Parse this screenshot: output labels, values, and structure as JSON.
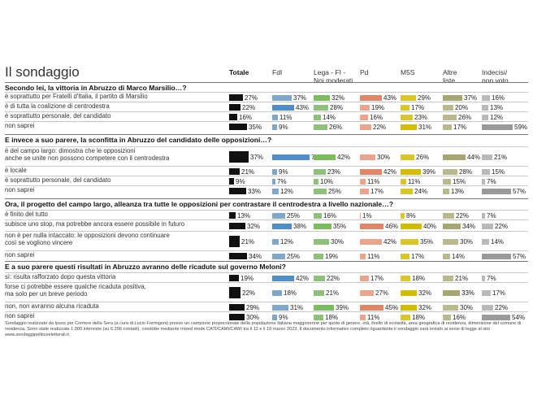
{
  "chart_data": {
    "type": "bar",
    "title": "Il sondaggio",
    "columns": [
      "Totale",
      "FdI",
      "Lega - FI - Noi moderati",
      "Pd",
      "M5S",
      "Altre liste",
      "Indecisi/ non voto"
    ],
    "column_labels": [
      "Totale",
      "FdI",
      "Lega - FI -\nNoi moderati",
      "Pd",
      "M5S",
      "Altre\nliste",
      "Indecisi/\nnon voto"
    ],
    "colors": [
      "#111111",
      "#7fa7c9",
      "#8ec07c",
      "#e8a48c",
      "#d9c62a",
      "#b8b98c",
      "#b9b9b9"
    ],
    "highlight_colors": [
      "#111111",
      "#4f8cc9",
      "#7cbb5e",
      "#e08565",
      "#d2bc00",
      "#a5a672",
      "#9a9a9a"
    ],
    "xlim": [
      0,
      100
    ],
    "questions": [
      {
        "question": "Secondo lei, la vittoria in Abruzzo di Marco Marsilio…?",
        "rows": [
          {
            "label": "è soprattutto per Fratelli d'Italia, il partito di Marsilio",
            "values": [
              27,
              37,
              32,
              43,
              29,
              37,
              16
            ]
          },
          {
            "label": "è di tutta la coalizione di centrodestra",
            "values": [
              22,
              43,
              28,
              19,
              17,
              20,
              13
            ]
          },
          {
            "label": "è soprattutto personale, del candidato",
            "values": [
              16,
              11,
              14,
              16,
              23,
              26,
              12
            ]
          },
          {
            "label": "non saprei",
            "values": [
              35,
              9,
              26,
              22,
              31,
              17,
              59
            ]
          }
        ]
      },
      {
        "question": "E invece a suo parere, la sconfitta in Abruzzo del candidato delle opposizioni…?",
        "rows": [
          {
            "label": "è del campo largo: dimostra che le opposizioni\nanche se unite non possono competere con il centrodestra",
            "values": [
              37,
              72,
              42,
              30,
              26,
              44,
              21
            ]
          },
          {
            "label": "è locale",
            "values": [
              21,
              9,
              23,
              42,
              39,
              28,
              15
            ]
          },
          {
            "label": "è soprattutto personale, del candidato",
            "values": [
              9,
              7,
              10,
              11,
              11,
              15,
              7
            ]
          },
          {
            "label": "non saprei",
            "values": [
              33,
              12,
              25,
              17,
              24,
              13,
              57
            ]
          }
        ]
      },
      {
        "question": "Ora, il progetto del campo largo, alleanza tra tutte le opposizioni per contrastare il centrodestra a livello nazionale…?",
        "rows": [
          {
            "label": "è finito del tutto",
            "values": [
              13,
              25,
              16,
              1,
              8,
              22,
              7
            ]
          },
          {
            "label": "subisce uno stop, ma potrebbe ancora essere possibile in futuro",
            "values": [
              32,
              38,
              35,
              46,
              40,
              34,
              22
            ]
          },
          {
            "label": "non è per nulla intaccato: le opposizioni devono continuare\ncosì se vogliono vincere",
            "values": [
              21,
              12,
              30,
              42,
              35,
              30,
              14
            ]
          },
          {
            "label": "non saprei",
            "values": [
              34,
              25,
              19,
              11,
              17,
              14,
              57
            ]
          }
        ]
      },
      {
        "question": "E a suo parere questi risultati in Abruzzo avranno delle ricadute sul governo Meloni?",
        "rows": [
          {
            "label": "sì: risulta rafforzato dopo questa vittoria",
            "values": [
              19,
              42,
              22,
              17,
              18,
              21,
              7
            ]
          },
          {
            "label": "forse ci potrebbe essere qualche ricaduta positiva,\nma solo per un breve periodo",
            "values": [
              22,
              18,
              21,
              27,
              32,
              33,
              17
            ]
          },
          {
            "label": "non, non avranno alcuna ricaduta",
            "values": [
              29,
              31,
              39,
              45,
              32,
              30,
              22
            ]
          },
          {
            "label": "non saprei",
            "values": [
              30,
              9,
              18,
              11,
              18,
              16,
              54
            ]
          }
        ]
      }
    ],
    "footnote": "Sondaggio realizzato da Ipsos per Corriere della Sera (a cura di Lucio Formigoni) presso un campione proporzionale della popolazione italiana maggiorenne per quote di genere, età, livello di scolarità, area geografica di residenza, dimensione del comune di residenza. Sono state realizzate 1.000 interviste (su 6.296 contatti), condotte mediante mixed mode CATI/CAMI/CAWI tra il 12 e il 16 marzo 2023. Il documento informativo completo riguardante il sondaggio sarà inviato ai sensi di legge al sito www.sondaggipoliticoelettorali.it"
  }
}
